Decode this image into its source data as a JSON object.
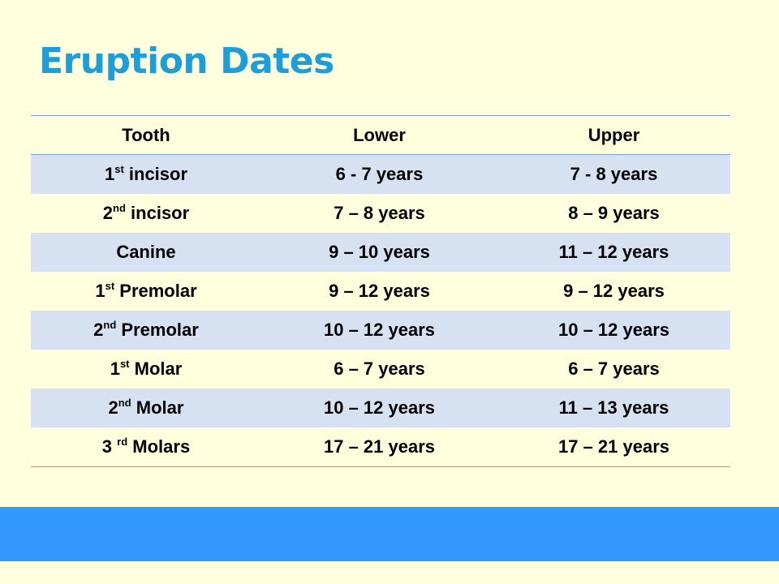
{
  "slide": {
    "title": "Eruption Dates"
  },
  "colors": {
    "background": "#ffffdd",
    "title": "#1e9ed6",
    "row_shade": "#d6e1f2",
    "rule_line": "#7a9fca",
    "footer_bar": "#3399ff"
  },
  "table": {
    "headers": [
      "Tooth",
      "Lower",
      "Upper"
    ],
    "rows": [
      {
        "tooth": {
          "pre": "1",
          "sup": "st",
          "post": " incisor"
        },
        "lower": "6 - 7 years",
        "upper": "7 - 8 years"
      },
      {
        "tooth": {
          "pre": "2",
          "sup": "nd",
          "post": " incisor"
        },
        "lower": "7 – 8 years",
        "upper": "8 – 9 years"
      },
      {
        "tooth": {
          "pre": "Canine",
          "sup": "",
          "post": ""
        },
        "lower": "9 – 10 years",
        "upper": "11 – 12 years"
      },
      {
        "tooth": {
          "pre": "1",
          "sup": "st",
          "post": " Premolar"
        },
        "lower": "9 – 12 years",
        "upper": "9 – 12 years"
      },
      {
        "tooth": {
          "pre": "2",
          "sup": "nd",
          "post": " Premolar"
        },
        "lower": "10 – 12 years",
        "upper": "10 – 12 years"
      },
      {
        "tooth": {
          "pre": "1",
          "sup": "st",
          "post": " Molar"
        },
        "lower": "6 – 7 years",
        "upper": "6 – 7 years"
      },
      {
        "tooth": {
          "pre": "2",
          "sup": "nd",
          "post": " Molar"
        },
        "lower": "10 – 12 years",
        "upper": "11 – 13 years"
      },
      {
        "tooth": {
          "pre": "3 ",
          "sup": "rd",
          "post": " Molars"
        },
        "lower": "17 – 21 years",
        "upper": "17 – 21 years"
      }
    ]
  }
}
